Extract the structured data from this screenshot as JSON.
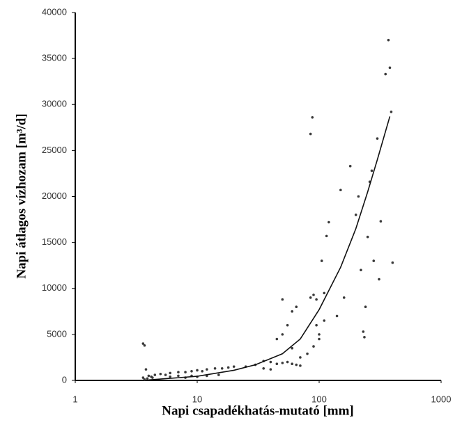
{
  "chart_data": {
    "type": "scatter",
    "x_label": "Napi csapadékhatás-mutató [mm]",
    "y_label": "Napi átlagos vízhozam [m³/d]",
    "xscale": "log",
    "xlim": [
      1,
      1000
    ],
    "xticks": [
      1,
      10,
      100,
      1000
    ],
    "ylim": [
      0,
      40000
    ],
    "yticks": [
      0,
      5000,
      10000,
      15000,
      20000,
      25000,
      30000,
      35000,
      40000
    ],
    "series": [
      {
        "color": "#3a3a3a",
        "x": [
          3.6,
          3.7,
          3.8,
          3.6,
          3.9,
          4,
          4.2,
          4.5,
          4.3,
          3.7,
          5,
          5.5,
          6,
          7,
          8,
          9,
          10,
          11,
          12,
          14,
          16,
          18,
          20,
          8,
          10,
          12,
          15,
          6,
          7,
          9,
          25,
          30,
          35,
          40,
          45,
          50,
          55,
          60,
          65,
          70,
          40,
          35,
          50,
          55,
          60,
          65,
          50,
          45,
          60,
          70,
          85,
          88,
          85,
          90,
          95,
          100,
          90,
          80,
          100,
          95,
          110,
          105,
          115,
          120,
          110,
          140,
          150,
          160,
          180,
          200,
          210,
          220,
          230,
          235,
          240,
          250,
          260,
          270,
          280,
          300,
          310,
          320,
          350,
          380,
          370,
          390,
          400
        ],
        "values": [
          4000,
          3800,
          1200,
          300,
          200,
          500,
          400,
          600,
          300,
          100,
          700,
          600,
          800,
          900,
          900,
          1000,
          1100,
          1000,
          1200,
          1300,
          1300,
          1400,
          1500,
          300,
          400,
          500,
          600,
          400,
          500,
          500,
          1500,
          1700,
          2100,
          2000,
          1800,
          1900,
          2000,
          1800,
          1700,
          1600,
          1200,
          1300,
          5000,
          6000,
          7500,
          8000,
          8800,
          4500,
          3500,
          2500,
          26800,
          28600,
          9000,
          9300,
          8800,
          4500,
          3700,
          2900,
          5000,
          6000,
          6500,
          13000,
          15700,
          17200,
          9500,
          7000,
          20700,
          9000,
          23300,
          18000,
          20000,
          12000,
          5300,
          4700,
          8000,
          15600,
          21600,
          22800,
          13000,
          26300,
          11000,
          17300,
          33300,
          34000,
          37000,
          29200,
          12800
        ]
      }
    ],
    "fit": {
      "type": "line",
      "color": "#111",
      "x": [
        4,
        10,
        20,
        30,
        50,
        70,
        100,
        150,
        200,
        250,
        300,
        380
      ],
      "values": [
        50,
        450,
        1100,
        1700,
        2900,
        4500,
        7700,
        12300,
        16500,
        20500,
        24000,
        28700
      ]
    }
  }
}
